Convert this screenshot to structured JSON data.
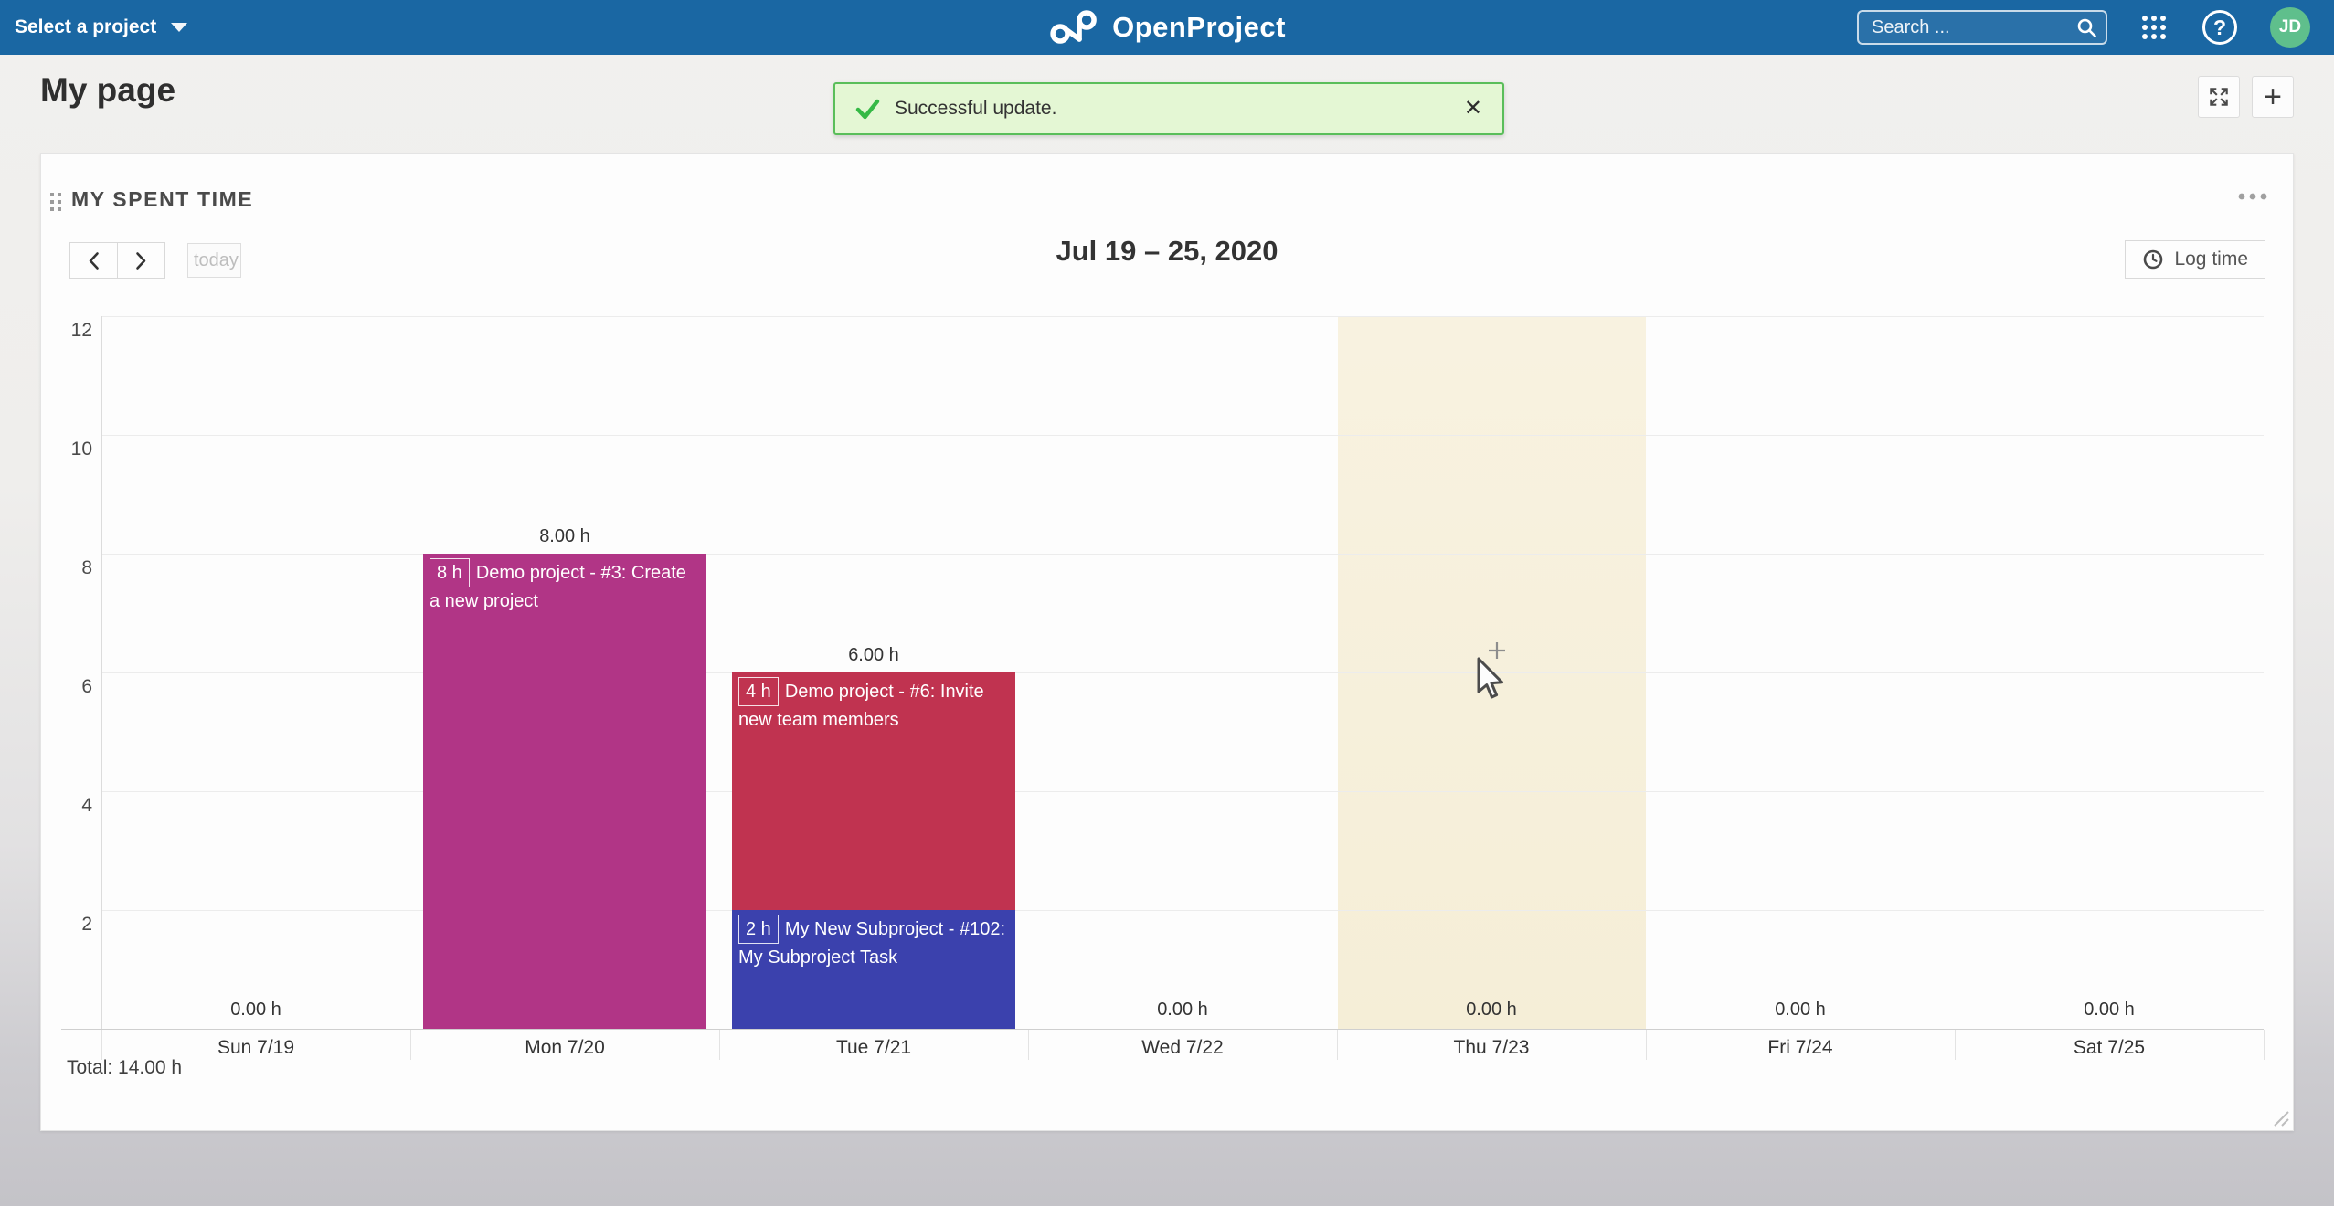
{
  "topbar": {
    "project_selector": "Select a project",
    "brand": "OpenProject",
    "search_placeholder": "Search ...",
    "help_label": "?",
    "avatar_initials": "JD"
  },
  "page": {
    "title": "My page",
    "add_button_label": "+",
    "toast_message": "Successful update.",
    "toast_close": "✕"
  },
  "widget": {
    "title": "MY SPENT TIME",
    "today_label": "today",
    "log_time_label": "Log time"
  },
  "chart_data": {
    "type": "bar",
    "stacked": true,
    "title": "Jul 19 – 25, 2020",
    "xlabel": "",
    "ylabel": "",
    "ylim": [
      0,
      12
    ],
    "y_ticks": [
      2,
      4,
      6,
      8,
      10,
      12
    ],
    "grid": true,
    "categories": [
      "Sun 7/19",
      "Mon 7/20",
      "Tue 7/21",
      "Wed 7/22",
      "Thu 7/23",
      "Fri 7/24",
      "Sat 7/25"
    ],
    "day_totals_hours": [
      0,
      8,
      6,
      0,
      0,
      0,
      0
    ],
    "day_total_labels": [
      "0.00 h",
      "8.00 h",
      "6.00 h",
      "0.00 h",
      "0.00 h",
      "0.00 h",
      "0.00 h"
    ],
    "highlighted_category_index": 4,
    "segments": [
      {
        "category_index": 1,
        "hours": 8,
        "hours_label": "8 h",
        "text": "Demo project - #3: Create a new project",
        "color": "#b13586"
      },
      {
        "category_index": 2,
        "hours": 4,
        "hours_label": "4 h",
        "text": "Demo project - #6: Invite new team members",
        "color": "#c03350"
      },
      {
        "category_index": 2,
        "hours": 2,
        "hours_label": "2 h",
        "text": "My New Subproject - #102: My Subproject Task",
        "color": "#3b41ad"
      }
    ],
    "total_label": "Total: 14.00 h"
  },
  "colors": {
    "topbar_bg": "#1a67a3",
    "avatar_bg": "#5fbf8c",
    "toast_bg": "#e4f7d4",
    "toast_border": "#5abe5a",
    "toast_check": "#35b945",
    "highlight_column": "#f8f2e0",
    "bar_magenta": "#b13586",
    "bar_red": "#c03350",
    "bar_blue": "#3b41ad"
  }
}
